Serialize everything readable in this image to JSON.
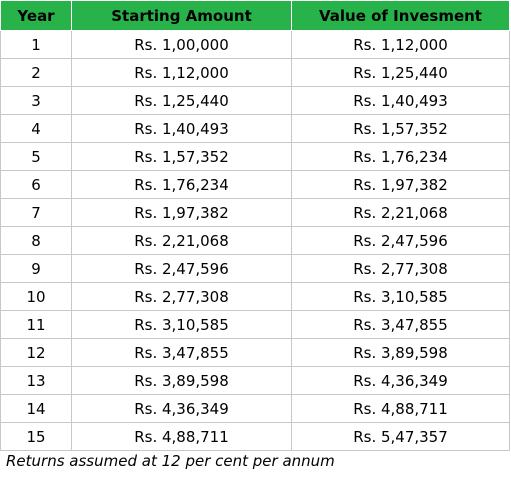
{
  "colors": {
    "header_background": "#27b34a",
    "grid_line": "#c8c8c8"
  },
  "table": {
    "headers": [
      "Year",
      "Starting Amount",
      "Value of Invesment"
    ],
    "rows": [
      [
        "1",
        "Rs. 1,00,000",
        "Rs. 1,12,000"
      ],
      [
        "2",
        "Rs. 1,12,000",
        "Rs. 1,25,440"
      ],
      [
        "3",
        "Rs. 1,25,440",
        "Rs. 1,40,493"
      ],
      [
        "4",
        "Rs. 1,40,493",
        "Rs. 1,57,352"
      ],
      [
        "5",
        "Rs. 1,57,352",
        "Rs. 1,76,234"
      ],
      [
        "6",
        "Rs. 1,76,234",
        "Rs. 1,97,382"
      ],
      [
        "7",
        "Rs. 1,97,382",
        "Rs. 2,21,068"
      ],
      [
        "8",
        "Rs. 2,21,068",
        "Rs. 2,47,596"
      ],
      [
        "9",
        "Rs. 2,47,596",
        "Rs. 2,77,308"
      ],
      [
        "10",
        "Rs. 2,77,308",
        "Rs. 3,10,585"
      ],
      [
        "11",
        "Rs. 3,10,585",
        "Rs. 3,47,855"
      ],
      [
        "12",
        "Rs. 3,47,855",
        "Rs. 3,89,598"
      ],
      [
        "13",
        "Rs. 3,89,598",
        "Rs. 4,36,349"
      ],
      [
        "14",
        "Rs. 4,36,349",
        "Rs. 4,88,711"
      ],
      [
        "15",
        "Rs. 4,88,711",
        "Rs. 5,47,357"
      ]
    ]
  },
  "footnote": "Returns assumed at 12 per cent per annum"
}
